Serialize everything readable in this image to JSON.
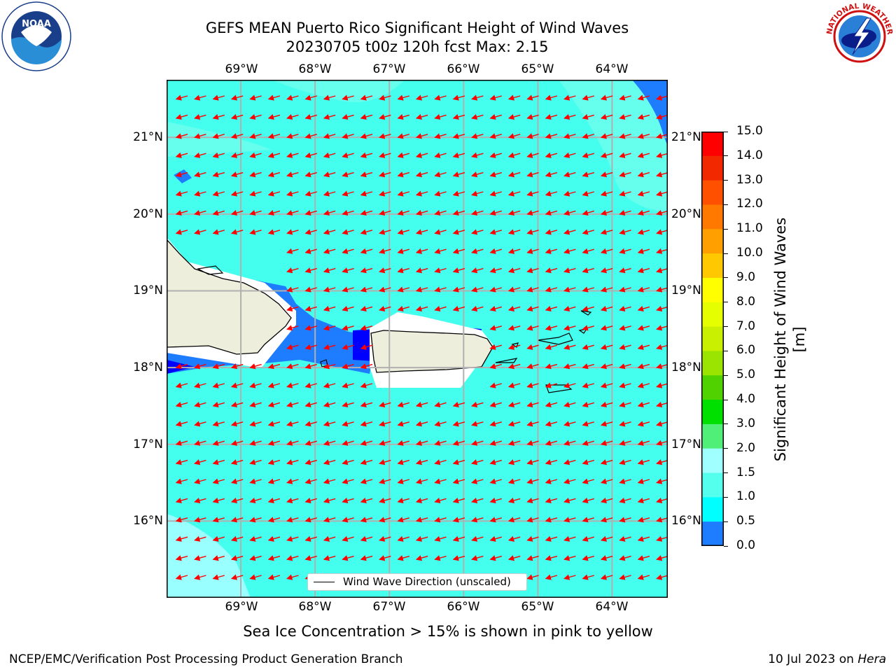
{
  "title": {
    "line1": "GEFS MEAN Puerto Rico Significant Height of Wind Waves",
    "line2": "20230705 t00z 120h fcst   Max: 2.15"
  },
  "logos": {
    "left": {
      "icon": "noaa-logo",
      "text": "NOAA",
      "ring_text": "NATIONAL OCEANIC AND ATMOSPHERIC ADMINISTRATION",
      "ring_text_bottom": "U.S. DEPARTMENT OF COMMERCE"
    },
    "right": {
      "icon": "nws-logo",
      "ring_text": "NATIONAL WEATHER SERVICE"
    }
  },
  "map": {
    "lon_labels": [
      "69°W",
      "68°W",
      "67°W",
      "66°W",
      "65°W",
      "64°W"
    ],
    "lat_labels": [
      "21°N",
      "20°N",
      "19°N",
      "18°N",
      "17°N",
      "16°N"
    ],
    "lon_range": [
      -70.0,
      -63.25
    ],
    "lat_range": [
      15.0,
      21.75
    ],
    "gridlines": true,
    "arrow_direction": "west-southwest",
    "colors": {
      "ocean_main": "#44ffee",
      "ocean_light": "#99ffff",
      "land": "#eeeedd",
      "arrow": "#ff0000",
      "grid": "#b0b0b0"
    }
  },
  "colorbar": {
    "ticks": [
      "15.0",
      "14.0",
      "13.0",
      "12.0",
      "11.0",
      "10.0",
      "9.0",
      "8.0",
      "7.0",
      "6.0",
      "5.0",
      "4.0",
      "3.0",
      "2.0",
      "1.5",
      "1.0",
      "0.5",
      "0.0"
    ],
    "title": "Significant Height of Wind Waves [m]",
    "colors": [
      "#ff0000",
      "#f22800",
      "#ff5000",
      "#ff7800",
      "#ffa000",
      "#ffc800",
      "#ffff00",
      "#e6ff00",
      "#c8f000",
      "#9be300",
      "#50d200",
      "#00e000",
      "#50f078",
      "#a0ffff",
      "#55ffee",
      "#00ffff",
      "#1e7dff",
      "#0000ff"
    ]
  },
  "legend": {
    "label": "Wind Wave Direction (unscaled)"
  },
  "sea_ice_note": "Sea Ice Concentration > 15% is shown in pink to yellow",
  "footer": {
    "left": "NCEP/EMC/Verification Post Processing Product Generation Branch",
    "right_prefix": "10 Jul 2023 on ",
    "right_host": "Hera"
  }
}
